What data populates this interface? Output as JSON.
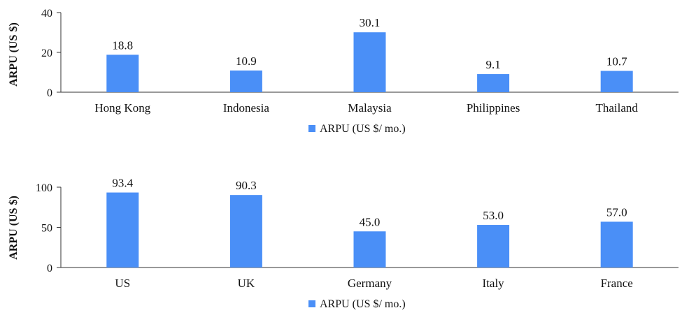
{
  "chart_data": [
    {
      "type": "bar",
      "categories": [
        "Hong Kong",
        "Indonesia",
        "Malaysia",
        "Philippines",
        "Thailand"
      ],
      "series": [
        {
          "name": "ARPU (US $/ mo.)",
          "values": [
            18.8,
            10.9,
            30.1,
            9.1,
            10.7
          ]
        }
      ],
      "data_labels": [
        "18.8",
        "10.9",
        "30.1",
        "9.1",
        "10.7"
      ],
      "ylabel": "ARPU (US $)",
      "ylim": [
        0,
        40
      ],
      "yticks": [
        "0",
        "20",
        "40"
      ],
      "ytick_values": [
        0,
        20,
        40
      ],
      "legend_position": "bottom-center",
      "grid": false,
      "bar_color": "#4a8ff7"
    },
    {
      "type": "bar",
      "categories": [
        "US",
        "UK",
        "Germany",
        "Italy",
        "France"
      ],
      "series": [
        {
          "name": "ARPU (US $/ mo.)",
          "values": [
            93.4,
            90.3,
            45.0,
            53.0,
            57.0
          ]
        }
      ],
      "data_labels": [
        "93.4",
        "90.3",
        "45.0",
        "53.0",
        "57.0"
      ],
      "ylabel": "ARPU (US $)",
      "ylim": [
        0,
        100
      ],
      "yticks": [
        "0",
        "50",
        "100"
      ],
      "ytick_values": [
        0,
        50,
        100
      ],
      "legend_position": "bottom-center",
      "grid": false,
      "bar_color": "#4a8ff7"
    }
  ]
}
